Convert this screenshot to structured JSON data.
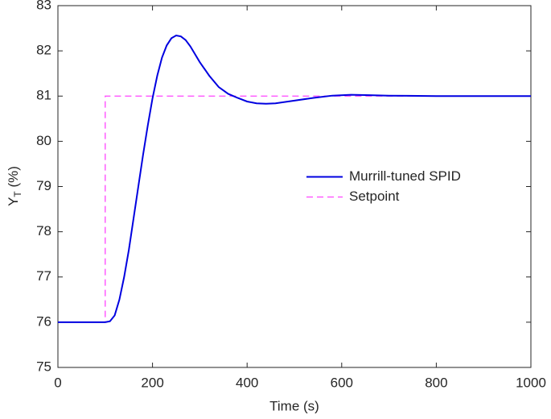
{
  "chart_data": {
    "type": "line",
    "xlabel": "Time (s)",
    "ylabel": {
      "base": "Y",
      "sub": "T",
      "rest": " (%)"
    },
    "xlim": [
      0,
      1000
    ],
    "xticks": [
      0,
      200,
      400,
      600,
      800,
      1000
    ],
    "ylim": [
      75,
      83
    ],
    "yticks": [
      75,
      76,
      77,
      78,
      79,
      80,
      81,
      82,
      83
    ],
    "legend": "center",
    "series": [
      {
        "name": "Murrill-tuned SPID",
        "color": "#0000e0",
        "linestyle": "solid",
        "x": [
          0,
          100,
          110,
          120,
          130,
          140,
          150,
          160,
          170,
          180,
          190,
          200,
          210,
          220,
          230,
          240,
          250,
          260,
          270,
          280,
          300,
          320,
          340,
          360,
          380,
          400,
          420,
          440,
          460,
          500,
          540,
          580,
          620,
          660,
          700,
          800,
          900,
          1000
        ],
        "values": [
          76,
          76,
          76.02,
          76.15,
          76.5,
          77.0,
          77.6,
          78.3,
          79.0,
          79.7,
          80.35,
          80.95,
          81.45,
          81.85,
          82.12,
          82.28,
          82.34,
          82.32,
          82.24,
          82.1,
          81.75,
          81.45,
          81.2,
          81.05,
          80.96,
          80.88,
          80.84,
          80.83,
          80.84,
          80.9,
          80.96,
          81.01,
          81.03,
          81.02,
          81.01,
          81.0,
          81.0,
          81.0
        ]
      },
      {
        "name": "Setpoint",
        "color": "#ff44ff",
        "linestyle": "dashed",
        "x": [
          0,
          100,
          100,
          1000
        ],
        "values": [
          76,
          76,
          81,
          81
        ]
      }
    ]
  }
}
